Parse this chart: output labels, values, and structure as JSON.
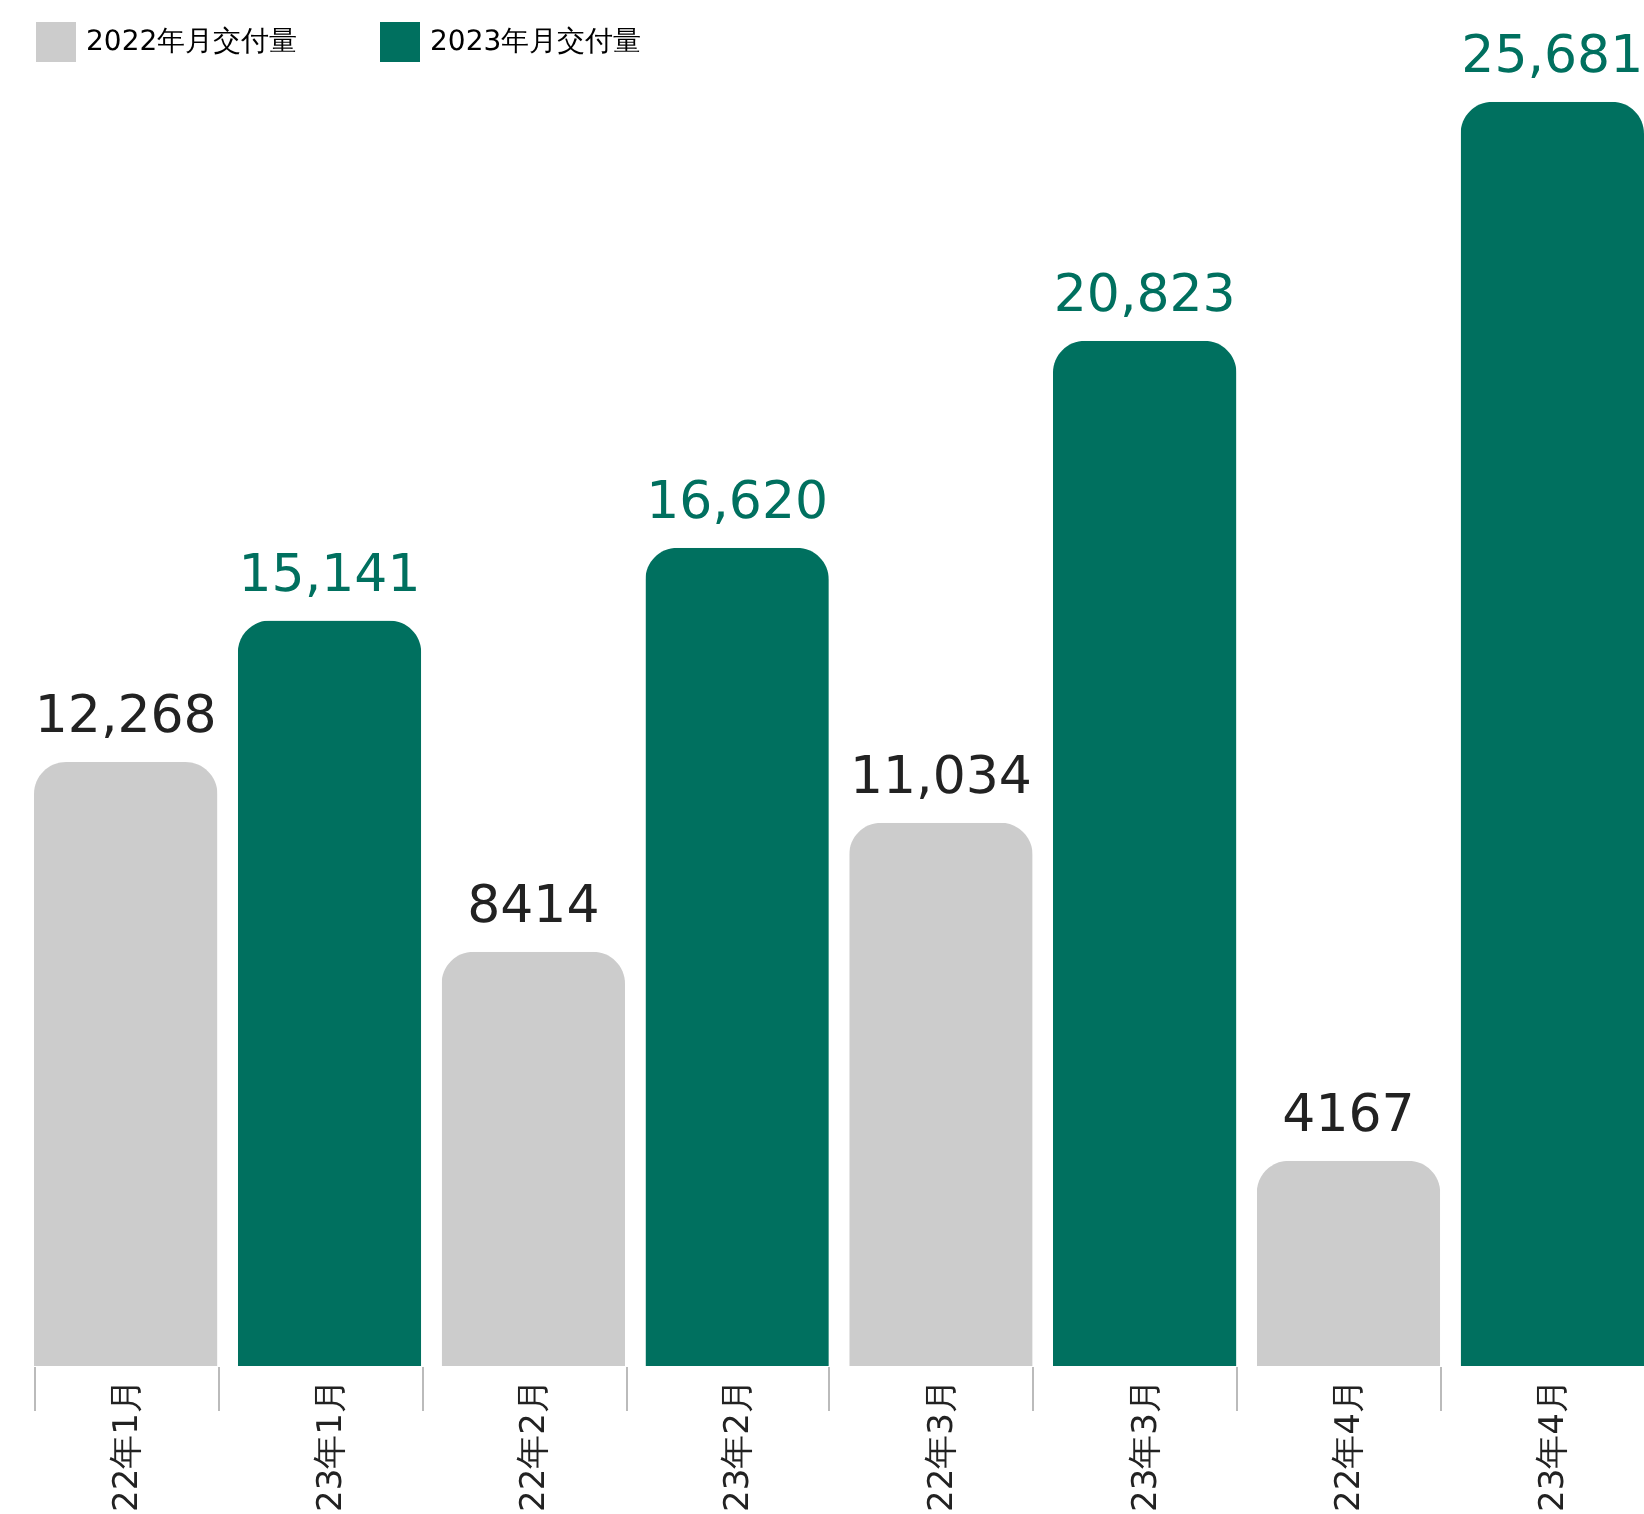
{
  "chart_data": {
    "type": "bar",
    "categories": [
      "22年1月",
      "23年1月",
      "22年2月",
      "23年2月",
      "22年3月",
      "23年3月",
      "22年4月",
      "23年4月"
    ],
    "series": [
      {
        "name": "2022年月交付量",
        "color": "#cccccc",
        "values": [
          12268,
          null,
          8414,
          null,
          11034,
          null,
          4167,
          null
        ],
        "value_labels": [
          "12,268",
          null,
          "8414",
          null,
          "11,034",
          null,
          "4167",
          null
        ]
      },
      {
        "name": "2023年月交付量",
        "color": "#00705f",
        "values": [
          null,
          15141,
          null,
          16620,
          null,
          20823,
          null,
          25681
        ],
        "value_labels": [
          null,
          "15,141",
          null,
          "16,620",
          null,
          "20,823",
          null,
          "25,681"
        ]
      }
    ],
    "legend": "top left",
    "grid": false
  }
}
